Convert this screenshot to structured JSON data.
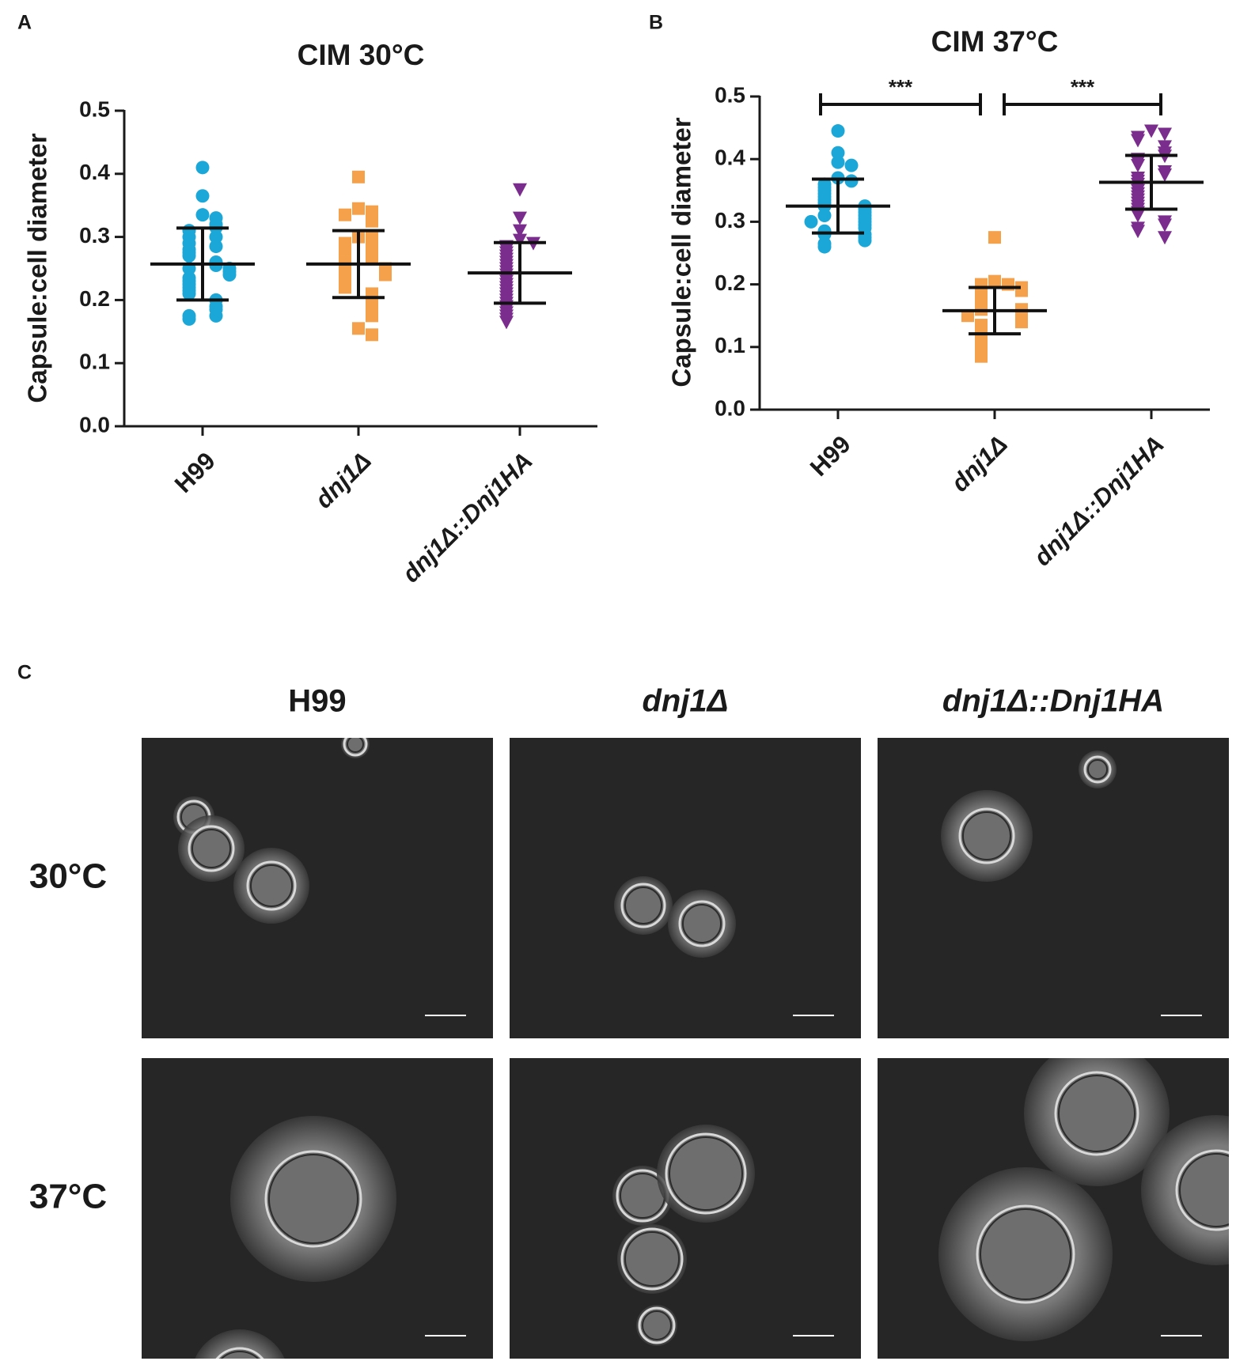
{
  "chart_data": [
    {
      "type": "dot",
      "panel": "A",
      "title": "CIM 30°C",
      "ylabel": "Capsule:cell diameter",
      "categories": [
        "H99",
        "dnj1Δ",
        "dnj1Δ::Dnj1HA"
      ],
      "ylim": [
        0,
        0.5
      ],
      "yticks": [
        {
          "value": 0,
          "label": "0.0"
        },
        0.1,
        0.2,
        0.3,
        0.4,
        0.5
      ],
      "groups": [
        {
          "color": "#1ba8d8",
          "marker": "circle",
          "mean": 0.257,
          "sd": 0.057,
          "values": [
            0.41,
            0.365,
            0.335,
            0.33,
            0.32,
            0.315,
            0.31,
            0.3,
            0.3,
            0.29,
            0.285,
            0.28,
            0.275,
            0.27,
            0.26,
            0.255,
            0.25,
            0.25,
            0.245,
            0.24,
            0.235,
            0.23,
            0.225,
            0.22,
            0.215,
            0.21,
            0.2,
            0.19,
            0.185,
            0.175,
            0.175,
            0.17
          ]
        },
        {
          "color": "#f5a04a",
          "marker": "square",
          "mean": 0.257,
          "sd": 0.053,
          "values": [
            0.395,
            0.345,
            0.34,
            0.335,
            0.325,
            0.3,
            0.3,
            0.29,
            0.285,
            0.28,
            0.27,
            0.265,
            0.26,
            0.255,
            0.25,
            0.25,
            0.245,
            0.24,
            0.235,
            0.23,
            0.225,
            0.22,
            0.21,
            0.2,
            0.19,
            0.185,
            0.175,
            0.155,
            0.145
          ]
        },
        {
          "color": "#7b2d8e",
          "marker": "triangle-down",
          "mean": 0.243,
          "sd": 0.048,
          "values": [
            0.375,
            0.33,
            0.31,
            0.295,
            0.29,
            0.285,
            0.28,
            0.275,
            0.27,
            0.265,
            0.26,
            0.255,
            0.25,
            0.245,
            0.24,
            0.235,
            0.23,
            0.225,
            0.22,
            0.215,
            0.21,
            0.205,
            0.2,
            0.195,
            0.19,
            0.185,
            0.18,
            0.175,
            0.17,
            0.165
          ]
        }
      ]
    },
    {
      "type": "dot",
      "panel": "B",
      "title": "CIM 37°C",
      "ylabel": "Capsule:cell diameter",
      "categories": [
        "H99",
        "dnj1Δ",
        "dnj1Δ::Dnj1HA"
      ],
      "ylim": [
        0,
        0.5
      ],
      "yticks": [
        {
          "value": 0,
          "label": "0.0"
        },
        0.1,
        0.2,
        0.3,
        0.4,
        0.5
      ],
      "significance": [
        {
          "from": 0,
          "to": 1,
          "label": "***"
        },
        {
          "from": 1,
          "to": 2,
          "label": "***"
        }
      ],
      "groups": [
        {
          "color": "#1ba8d8",
          "marker": "circle",
          "mean": 0.325,
          "sd": 0.043,
          "values": [
            0.445,
            0.41,
            0.395,
            0.39,
            0.37,
            0.365,
            0.36,
            0.355,
            0.35,
            0.345,
            0.34,
            0.335,
            0.33,
            0.325,
            0.325,
            0.32,
            0.315,
            0.31,
            0.31,
            0.305,
            0.3,
            0.3,
            0.295,
            0.29,
            0.285,
            0.28,
            0.28,
            0.275,
            0.27,
            0.265,
            0.26
          ]
        },
        {
          "color": "#f5a04a",
          "marker": "square",
          "mean": 0.158,
          "sd": 0.037,
          "values": [
            0.275,
            0.205,
            0.2,
            0.2,
            0.195,
            0.19,
            0.185,
            0.18,
            0.175,
            0.17,
            0.165,
            0.16,
            0.16,
            0.155,
            0.15,
            0.15,
            0.145,
            0.14,
            0.135,
            0.13,
            0.125,
            0.12,
            0.115,
            0.11,
            0.105,
            0.1,
            0.095,
            0.09,
            0.085
          ]
        },
        {
          "color": "#7b2d8e",
          "marker": "triangle-down",
          "mean": 0.363,
          "sd": 0.043,
          "values": [
            0.445,
            0.44,
            0.435,
            0.43,
            0.42,
            0.41,
            0.405,
            0.4,
            0.395,
            0.39,
            0.38,
            0.375,
            0.37,
            0.365,
            0.36,
            0.355,
            0.35,
            0.345,
            0.34,
            0.335,
            0.33,
            0.325,
            0.32,
            0.315,
            0.31,
            0.3,
            0.295,
            0.29,
            0.285,
            0.275
          ]
        }
      ]
    }
  ],
  "panel_c": {
    "label": "C",
    "columns": [
      "H99",
      "dnj1Δ",
      "dnj1Δ::Dnj1HA"
    ],
    "rows": [
      "30°C",
      "37°C"
    ]
  }
}
